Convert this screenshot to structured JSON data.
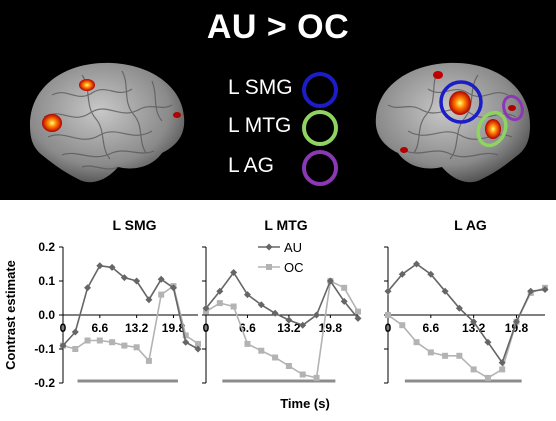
{
  "title": "AU > OC",
  "regions": [
    {
      "label": "L SMG",
      "color": "#1c1cc8"
    },
    {
      "label": "L MTG",
      "color": "#8fd460"
    },
    {
      "label": "L AG",
      "color": "#8a38b4"
    }
  ],
  "chart_data": [
    {
      "type": "line",
      "title": "L SMG",
      "x": [
        0,
        2.2,
        4.4,
        6.6,
        8.8,
        11.0,
        13.2,
        15.4,
        17.6,
        19.8,
        22.0,
        24.2
      ],
      "xticks": [
        "0",
        "6.6",
        "13.2",
        "19.8"
      ],
      "ylabel": "Contrast estimate",
      "ylim": [
        -0.2,
        0.2
      ],
      "yticks": [
        "0.2",
        "0.1",
        "0.0",
        "-0.1",
        "-0.2"
      ],
      "series": [
        {
          "name": "AU",
          "values": [
            -0.09,
            -0.05,
            0.08,
            0.145,
            0.14,
            0.11,
            0.1,
            0.045,
            0.105,
            0.08,
            -0.08,
            -0.1
          ]
        },
        {
          "name": "OC",
          "values": [
            -0.09,
            -0.1,
            -0.075,
            -0.075,
            -0.08,
            -0.09,
            -0.095,
            -0.135,
            0.06,
            0.085,
            -0.06,
            -0.085
          ]
        }
      ]
    },
    {
      "type": "line",
      "title": "L MTG",
      "x": [
        0,
        2.2,
        4.4,
        6.6,
        8.8,
        11.0,
        13.2,
        15.4,
        17.6,
        19.8,
        22.0,
        24.2
      ],
      "xticks": [
        "0",
        "6.6",
        "13.2",
        "19.8"
      ],
      "ylim": [
        -0.2,
        0.2
      ],
      "series": [
        {
          "name": "AU",
          "values": [
            0.02,
            0.07,
            0.125,
            0.06,
            0.03,
            0.005,
            -0.015,
            -0.03,
            0.0,
            0.1,
            0.04,
            -0.01
          ]
        },
        {
          "name": "OC",
          "values": [
            0.01,
            0.035,
            0.025,
            -0.085,
            -0.105,
            -0.125,
            -0.15,
            -0.175,
            -0.185,
            0.1,
            0.08,
            0.01
          ]
        }
      ]
    },
    {
      "type": "line",
      "title": "L AG",
      "x": [
        0,
        2.2,
        4.4,
        6.6,
        8.8,
        11.0,
        13.2,
        15.4,
        17.6,
        19.8,
        22.0,
        24.2
      ],
      "xticks": [
        "0",
        "6.6",
        "13.2",
        "19.8"
      ],
      "ylim": [
        -0.2,
        0.2
      ],
      "series": [
        {
          "name": "AU",
          "values": [
            0.07,
            0.12,
            0.15,
            0.12,
            0.07,
            0.02,
            -0.02,
            -0.08,
            -0.14,
            -0.02,
            0.07,
            0.075
          ]
        },
        {
          "name": "OC",
          "values": [
            0.0,
            -0.03,
            -0.08,
            -0.11,
            -0.12,
            -0.12,
            -0.16,
            -0.185,
            -0.16,
            -0.02,
            0.065,
            0.08
          ]
        }
      ]
    }
  ],
  "legend": [
    {
      "name": "AU",
      "color": "#666666",
      "marker": "diamond"
    },
    {
      "name": "OC",
      "color": "#b3b3b3",
      "marker": "square"
    }
  ],
  "xlabel": "Time (s)"
}
